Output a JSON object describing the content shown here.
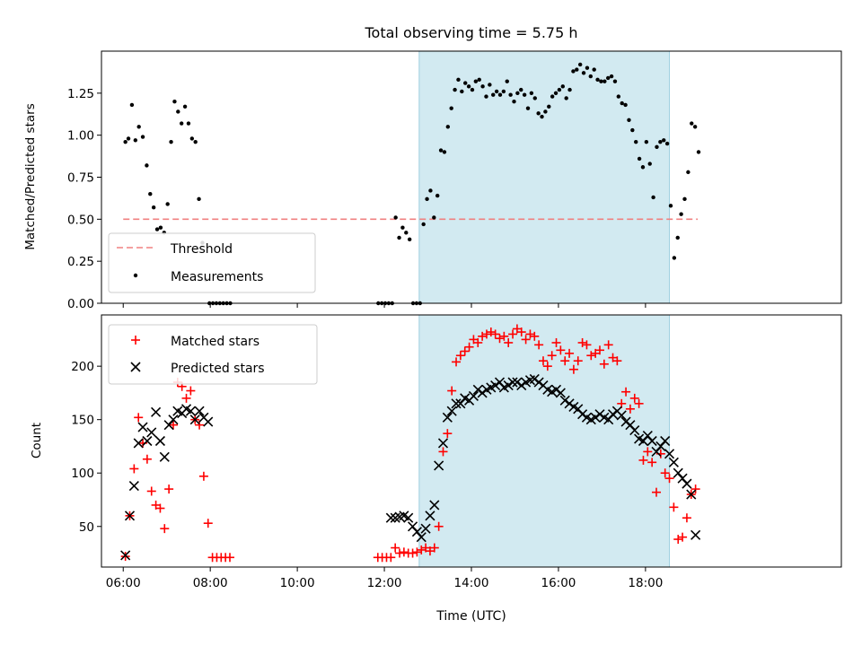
{
  "title": "Total observing time = 5.75 h",
  "colors": {
    "threshold": "#f08080",
    "measurement": "#000000",
    "matched": "#ff0000",
    "predicted": "#000000",
    "shade_fill": "#add8e6",
    "shade_edge": "#9fcfdf"
  },
  "chart_data": [
    {
      "type": "scatter",
      "xlabel": "",
      "ylabel": "Matched/Predicted stars",
      "xlim": [
        5.5,
        22.5
      ],
      "ylim": [
        0,
        1.5
      ],
      "x_ticks": [
        "06:00",
        "08:00",
        "10:00",
        "12:00",
        "14:00",
        "16:00",
        "18:00"
      ],
      "y_ticks": [
        "0.00",
        "0.25",
        "0.50",
        "0.75",
        "1.00",
        "1.25"
      ],
      "shaded_span": [
        12.8,
        18.55
      ],
      "legend": {
        "placement": "lower-left",
        "entries": [
          "Threshold",
          "Measurements"
        ]
      },
      "series": [
        {
          "name": "Threshold",
          "kind": "line",
          "x": [
            6.0,
            19.2
          ],
          "y": [
            0.5,
            0.5
          ]
        },
        {
          "name": "Measurements",
          "kind": "scatter",
          "x": [
            6.05,
            6.12,
            6.2,
            6.28,
            6.36,
            6.45,
            6.54,
            6.62,
            6.7,
            6.78,
            6.86,
            6.94,
            7.02,
            7.1,
            7.18,
            7.26,
            7.34,
            7.42,
            7.5,
            7.58,
            7.66,
            7.74,
            7.82,
            7.9,
            7.98,
            8.06,
            8.14,
            8.22,
            8.3,
            8.38,
            8.46,
            11.86,
            11.94,
            12.02,
            12.1,
            12.18,
            12.26,
            12.34,
            12.42,
            12.5,
            12.58,
            12.66,
            12.74,
            12.82,
            12.9,
            12.98,
            13.06,
            13.14,
            13.22,
            13.3,
            13.38,
            13.46,
            13.54,
            13.62,
            13.7,
            13.78,
            13.86,
            13.94,
            14.02,
            14.1,
            14.18,
            14.26,
            14.34,
            14.42,
            14.5,
            14.58,
            14.66,
            14.74,
            14.82,
            14.9,
            14.98,
            15.06,
            15.14,
            15.22,
            15.3,
            15.38,
            15.46,
            15.54,
            15.62,
            15.7,
            15.78,
            15.86,
            15.94,
            16.02,
            16.1,
            16.18,
            16.26,
            16.34,
            16.42,
            16.5,
            16.58,
            16.66,
            16.74,
            16.82,
            16.9,
            16.98,
            17.06,
            17.14,
            17.22,
            17.3,
            17.38,
            17.46,
            17.54,
            17.62,
            17.7,
            17.78,
            17.86,
            17.94,
            18.02,
            18.1,
            18.18,
            18.26,
            18.34,
            18.42,
            18.5,
            18.58,
            18.66,
            18.74,
            18.82,
            18.9,
            18.98,
            19.06,
            19.14,
            19.22
          ],
          "y": [
            0.96,
            0.98,
            1.18,
            0.97,
            1.05,
            0.99,
            0.82,
            0.65,
            0.57,
            0.44,
            0.45,
            0.42,
            0.59,
            0.96,
            1.2,
            1.14,
            1.07,
            1.17,
            1.07,
            0.98,
            0.96,
            0.62,
            0.36,
            0.14,
            0.0,
            0.0,
            0.0,
            0.0,
            0.0,
            0.0,
            0.0,
            0.0,
            0.0,
            0.0,
            0.0,
            0.0,
            0.51,
            0.39,
            0.45,
            0.42,
            0.38,
            0.0,
            0.0,
            0.0,
            0.47,
            0.62,
            0.67,
            0.51,
            0.64,
            0.91,
            0.9,
            1.05,
            1.16,
            1.27,
            1.33,
            1.26,
            1.31,
            1.29,
            1.27,
            1.32,
            1.33,
            1.29,
            1.23,
            1.3,
            1.24,
            1.26,
            1.24,
            1.26,
            1.32,
            1.24,
            1.2,
            1.25,
            1.27,
            1.24,
            1.16,
            1.25,
            1.22,
            1.13,
            1.11,
            1.14,
            1.17,
            1.23,
            1.25,
            1.27,
            1.29,
            1.22,
            1.27,
            1.38,
            1.39,
            1.42,
            1.37,
            1.4,
            1.35,
            1.39,
            1.33,
            1.32,
            1.32,
            1.34,
            1.35,
            1.32,
            1.23,
            1.19,
            1.18,
            1.09,
            1.03,
            0.96,
            0.86,
            0.81,
            0.96,
            0.83,
            0.63,
            0.93,
            0.96,
            0.97,
            0.95,
            0.58,
            0.27,
            0.39,
            0.53,
            0.62,
            0.78,
            1.07,
            1.05,
            0.9
          ]
        }
      ]
    },
    {
      "type": "scatter",
      "xlabel": "Time (UTC)",
      "ylabel": "Count",
      "xlim": [
        5.5,
        22.5
      ],
      "ylim": [
        12,
        248
      ],
      "x_ticks": [
        "06:00",
        "08:00",
        "10:00",
        "12:00",
        "14:00",
        "16:00",
        "18:00"
      ],
      "y_ticks": [
        "50",
        "100",
        "150",
        "200"
      ],
      "shaded_span": [
        12.8,
        18.55
      ],
      "legend": {
        "placement": "upper-left",
        "entries": [
          "Matched stars",
          "Predicted stars"
        ]
      },
      "series": [
        {
          "name": "Matched stars",
          "kind": "scatter",
          "x": [
            6.05,
            6.15,
            6.25,
            6.35,
            6.45,
            6.55,
            6.65,
            6.75,
            6.85,
            6.95,
            7.05,
            7.15,
            7.25,
            7.35,
            7.45,
            7.55,
            7.65,
            7.75,
            7.85,
            7.95,
            8.05,
            8.15,
            8.25,
            8.35,
            8.45,
            11.85,
            11.95,
            12.05,
            12.15,
            12.25,
            12.35,
            12.45,
            12.55,
            12.65,
            12.75,
            12.85,
            12.95,
            13.05,
            13.15,
            13.25,
            13.35,
            13.45,
            13.55,
            13.65,
            13.75,
            13.85,
            13.95,
            14.05,
            14.15,
            14.25,
            14.35,
            14.45,
            14.55,
            14.65,
            14.75,
            14.85,
            14.95,
            15.05,
            15.15,
            15.25,
            15.35,
            15.45,
            15.55,
            15.65,
            15.75,
            15.85,
            15.95,
            16.05,
            16.15,
            16.25,
            16.35,
            16.45,
            16.55,
            16.65,
            16.75,
            16.85,
            16.95,
            17.05,
            17.15,
            17.25,
            17.35,
            17.45,
            17.55,
            17.65,
            17.75,
            17.85,
            17.95,
            18.05,
            18.15,
            18.25,
            18.35,
            18.45,
            18.55,
            18.65,
            18.75,
            18.85,
            18.95,
            19.05,
            19.15
          ],
          "y": [
            22,
            60,
            104,
            152,
            128,
            113,
            83,
            70,
            67,
            48,
            85,
            145,
            185,
            181,
            170,
            177,
            150,
            145,
            97,
            53,
            21,
            21,
            21,
            21,
            21,
            21,
            21,
            21,
            21,
            30,
            25,
            26,
            25,
            25,
            26,
            28,
            30,
            27,
            30,
            50,
            120,
            137,
            177,
            204,
            210,
            214,
            218,
            225,
            222,
            228,
            230,
            232,
            230,
            226,
            228,
            222,
            230,
            235,
            232,
            225,
            230,
            228,
            220,
            205,
            200,
            210,
            222,
            215,
            205,
            212,
            197,
            205,
            222,
            220,
            210,
            212,
            215,
            202,
            220,
            208,
            205,
            165,
            176,
            160,
            170,
            165,
            112,
            120,
            110,
            82,
            118,
            100,
            95,
            68,
            38,
            40,
            58,
            80,
            85
          ],
          "note": ""
        },
        {
          "name": "Predicted stars",
          "kind": "scatter",
          "x": [
            6.05,
            6.15,
            6.25,
            6.35,
            6.45,
            6.55,
            6.65,
            6.75,
            6.85,
            6.95,
            7.05,
            7.15,
            7.25,
            7.35,
            7.45,
            7.55,
            7.65,
            7.75,
            7.85,
            7.95,
            12.15,
            12.25,
            12.35,
            12.45,
            12.55,
            12.65,
            12.75,
            12.85,
            12.95,
            13.05,
            13.15,
            13.25,
            13.35,
            13.45,
            13.55,
            13.65,
            13.75,
            13.85,
            13.95,
            14.05,
            14.15,
            14.25,
            14.35,
            14.45,
            14.55,
            14.65,
            14.75,
            14.85,
            14.95,
            15.05,
            15.15,
            15.25,
            15.35,
            15.45,
            15.55,
            15.65,
            15.75,
            15.85,
            15.95,
            16.05,
            16.15,
            16.25,
            16.35,
            16.45,
            16.55,
            16.65,
            16.75,
            16.85,
            16.95,
            17.05,
            17.15,
            17.25,
            17.35,
            17.45,
            17.55,
            17.65,
            17.75,
            17.85,
            17.95,
            18.05,
            18.15,
            18.25,
            18.35,
            18.45,
            18.55,
            18.65,
            18.75,
            18.85,
            18.95,
            19.05,
            19.15
          ],
          "y": [
            23,
            60,
            88,
            128,
            143,
            130,
            138,
            157,
            130,
            115,
            145,
            150,
            158,
            156,
            160,
            158,
            150,
            158,
            152,
            148,
            58,
            58,
            59,
            60,
            58,
            50,
            45,
            40,
            48,
            60,
            70,
            107,
            128,
            152,
            158,
            165,
            165,
            170,
            168,
            172,
            178,
            175,
            178,
            180,
            182,
            185,
            180,
            182,
            185,
            185,
            182,
            185,
            187,
            188,
            185,
            182,
            178,
            176,
            178,
            175,
            168,
            165,
            162,
            160,
            155,
            152,
            150,
            152,
            155,
            152,
            150,
            155,
            158,
            154,
            148,
            145,
            140,
            132,
            130,
            135,
            130,
            120,
            125,
            130,
            118,
            110,
            100,
            95,
            90,
            80,
            42
          ],
          "note": ""
        }
      ]
    }
  ]
}
